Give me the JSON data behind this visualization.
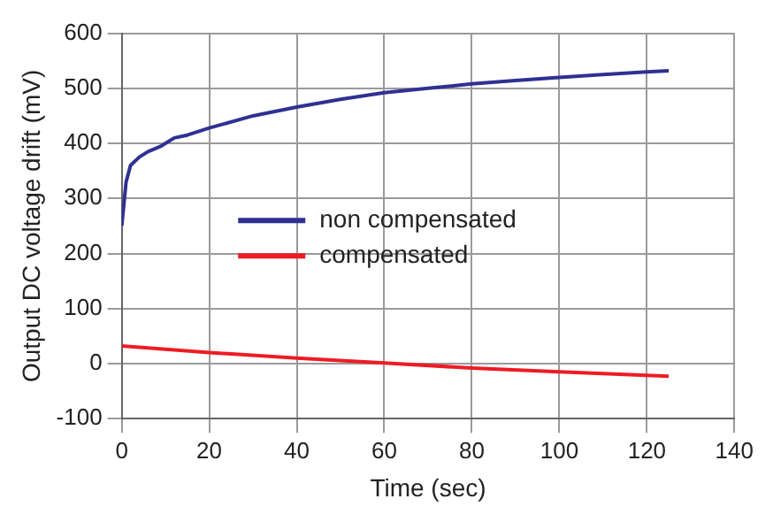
{
  "chart_data": {
    "type": "line",
    "xlabel": "Time (sec)",
    "ylabel": "Output DC voltage drift (mV)",
    "xlim": [
      0,
      140
    ],
    "xticks": [
      0,
      20,
      40,
      60,
      80,
      100,
      120,
      140
    ],
    "ylim": [
      -100,
      600
    ],
    "yticks": [
      -100,
      0,
      100,
      200,
      300,
      400,
      500,
      600
    ],
    "grid": true,
    "legend": "left",
    "marker": "none",
    "line_style": "solid",
    "series": [
      {
        "name": "non compensated",
        "color": "#2e3192",
        "x": [
          0,
          1,
          2,
          4,
          6,
          9,
          10,
          12,
          15,
          20,
          30,
          40,
          50,
          60,
          70,
          80,
          90,
          100,
          110,
          120,
          125
        ],
        "values": [
          250,
          330,
          360,
          375,
          385,
          395,
          400,
          410,
          415,
          428,
          450,
          466,
          480,
          492,
          500,
          508,
          514,
          520,
          525,
          530,
          532
        ]
      },
      {
        "name": "compensated",
        "color": "#ed1c24",
        "x": [
          0,
          20,
          40,
          60,
          80,
          100,
          125
        ],
        "values": [
          32,
          20,
          10,
          1,
          -8,
          -15,
          -23
        ]
      }
    ]
  }
}
